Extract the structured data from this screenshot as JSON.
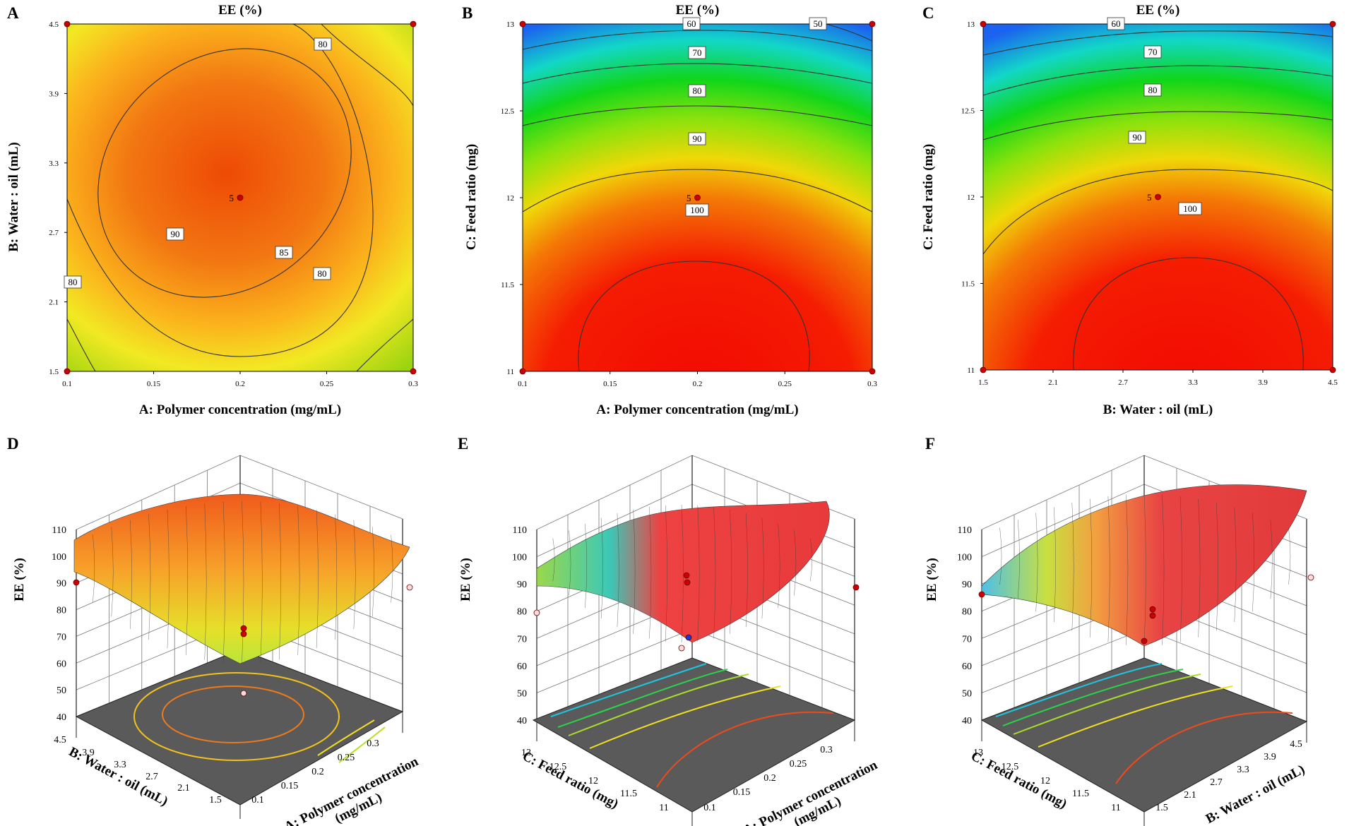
{
  "chart_data": [
    {
      "panel": "A",
      "type": "contour",
      "title": "EE (%)",
      "xlabel": "A: Polymer concentration (mg/mL)",
      "ylabel": "B: Water : oil (mL)",
      "x_ticks": [
        "0.1",
        "0.15",
        "0.2",
        "0.25",
        "0.3"
      ],
      "y_ticks": [
        "1.5",
        "2.1",
        "2.7",
        "3.3",
        "3.9",
        "4.5"
      ],
      "xlim": [
        0.1,
        0.3
      ],
      "ylim": [
        1.5,
        4.5
      ],
      "contour_labels": [
        "90",
        "85",
        "80",
        "80",
        "80"
      ],
      "center_label": "5",
      "center_point": [
        0.2,
        3.0
      ],
      "design_points": [
        [
          0.1,
          1.5
        ],
        [
          0.1,
          4.5
        ],
        [
          0.3,
          1.5
        ],
        [
          0.3,
          4.5
        ]
      ]
    },
    {
      "panel": "B",
      "type": "contour",
      "title": "EE (%)",
      "xlabel": "A: Polymer concentration (mg/mL)",
      "ylabel": "C: Feed ratio (mg)",
      "x_ticks": [
        "0.1",
        "0.15",
        "0.2",
        "0.25",
        "0.3"
      ],
      "y_ticks": [
        "11",
        "11.5",
        "12",
        "12.5",
        "13"
      ],
      "xlim": [
        0.1,
        0.3
      ],
      "ylim": [
        11,
        13
      ],
      "contour_labels": [
        "100",
        "90",
        "80",
        "70",
        "60",
        "50"
      ],
      "center_label": "5",
      "center_point": [
        0.2,
        12.0
      ],
      "design_points": [
        [
          0.1,
          11
        ],
        [
          0.1,
          13
        ],
        [
          0.3,
          11
        ],
        [
          0.3,
          13
        ]
      ]
    },
    {
      "panel": "C",
      "type": "contour",
      "title": "EE (%)",
      "xlabel": "B: Water : oil (mL)",
      "ylabel": "C: Feed ratio (mg)",
      "x_ticks": [
        "1.5",
        "2.1",
        "2.7",
        "3.3",
        "3.9",
        "4.5"
      ],
      "y_ticks": [
        "11",
        "11.5",
        "12",
        "12.5",
        "13"
      ],
      "xlim": [
        1.5,
        4.5
      ],
      "ylim": [
        11,
        13
      ],
      "contour_labels": [
        "100",
        "90",
        "80",
        "70",
        "60"
      ],
      "center_label": "5",
      "center_point": [
        3.0,
        12.0
      ],
      "design_points": [
        [
          1.5,
          11
        ],
        [
          1.5,
          13
        ],
        [
          4.5,
          11
        ],
        [
          4.5,
          13
        ]
      ]
    },
    {
      "panel": "D",
      "type": "surface3d",
      "zlabel": "EE (%)",
      "z_ticks": [
        "40",
        "50",
        "60",
        "70",
        "80",
        "90",
        "100",
        "110"
      ],
      "right_axis_ticks": [
        "0.1",
        "0.15",
        "0.2",
        "0.25",
        "0.3"
      ],
      "right_axis_label": [
        "A: Polymer concentration",
        "(mg/mL)"
      ],
      "left_axis_ticks": [
        "1.5",
        "2.1",
        "2.7",
        "3.3",
        "3.9",
        "4.5"
      ],
      "left_axis_label": "B: Water : oil (mL)"
    },
    {
      "panel": "E",
      "type": "surface3d",
      "zlabel": "EE (%)",
      "z_ticks": [
        "40",
        "50",
        "60",
        "70",
        "80",
        "90",
        "100",
        "110"
      ],
      "right_axis_ticks": [
        "0.1",
        "0.15",
        "0.2",
        "0.25",
        "0.3"
      ],
      "right_axis_label": [
        "A: Polymer concentration",
        "(mg/mL)"
      ],
      "left_axis_ticks": [
        "11",
        "11.5",
        "12",
        "12.5",
        "13"
      ],
      "left_axis_label": "C: Feed ratio (mg)"
    },
    {
      "panel": "F",
      "type": "surface3d",
      "zlabel": "EE (%)",
      "z_ticks": [
        "40",
        "50",
        "60",
        "70",
        "80",
        "90",
        "100",
        "110"
      ],
      "right_axis_ticks": [
        "1.5",
        "2.1",
        "2.7",
        "3.3",
        "3.9",
        "4.5"
      ],
      "right_axis_label": [
        "B: Water : oil (mL)"
      ],
      "left_axis_ticks": [
        "11",
        "11.5",
        "12",
        "12.5",
        "13"
      ],
      "left_axis_label": "C: Feed ratio (mg)"
    }
  ]
}
